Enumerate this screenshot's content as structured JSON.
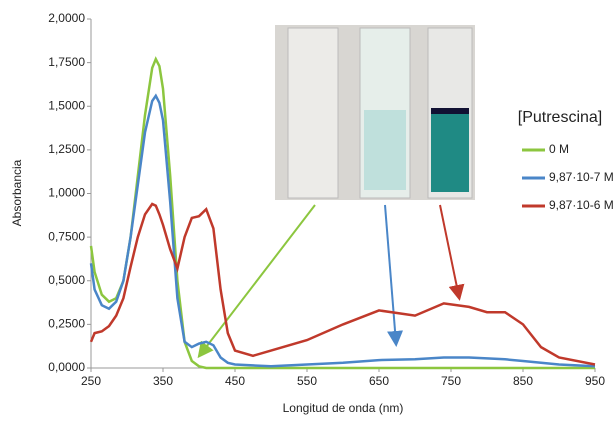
{
  "chart_data": {
    "type": "line",
    "x_label": "Longitud de onda (nm)",
    "y_label": "Absorbancia",
    "legend_title": "[Putrescina]",
    "x": [
      250,
      255,
      265,
      275,
      285,
      295,
      305,
      315,
      325,
      335,
      340,
      345,
      350,
      360,
      370,
      380,
      390,
      400,
      410,
      420,
      430,
      440,
      450,
      475,
      500,
      550,
      600,
      650,
      700,
      740,
      775,
      800,
      825,
      850,
      875,
      900,
      950
    ],
    "series": [
      {
        "name": "0 M",
        "color": "#8cc63f",
        "values": [
          0.7,
          0.55,
          0.42,
          0.38,
          0.4,
          0.5,
          0.75,
          1.1,
          1.45,
          1.72,
          1.77,
          1.73,
          1.6,
          1.1,
          0.5,
          0.15,
          0.04,
          0.01,
          0,
          0,
          0,
          0,
          0,
          0,
          0,
          0,
          0,
          0,
          0,
          0,
          0,
          0,
          0,
          0,
          0,
          0,
          0
        ]
      },
      {
        "name": "9,87·10-7 M",
        "color": "#4a86c8",
        "values": [
          0.6,
          0.45,
          0.36,
          0.34,
          0.38,
          0.5,
          0.75,
          1.05,
          1.35,
          1.53,
          1.56,
          1.52,
          1.42,
          0.95,
          0.4,
          0.15,
          0.12,
          0.14,
          0.15,
          0.13,
          0.06,
          0.03,
          0.02,
          0.015,
          0.01,
          0.02,
          0.03,
          0.045,
          0.05,
          0.06,
          0.06,
          0.055,
          0.05,
          0.04,
          0.03,
          0.02,
          0.01
        ]
      },
      {
        "name": "9,87·10-6 M",
        "color": "#c0392b",
        "values": [
          0.15,
          0.2,
          0.21,
          0.24,
          0.3,
          0.4,
          0.58,
          0.75,
          0.88,
          0.94,
          0.93,
          0.88,
          0.82,
          0.68,
          0.57,
          0.75,
          0.86,
          0.87,
          0.91,
          0.8,
          0.45,
          0.2,
          0.1,
          0.07,
          0.1,
          0.16,
          0.25,
          0.33,
          0.3,
          0.37,
          0.35,
          0.32,
          0.32,
          0.25,
          0.12,
          0.06,
          0.02
        ]
      }
    ],
    "xlim": [
      250,
      950
    ],
    "xticks": [
      250,
      350,
      450,
      550,
      650,
      750,
      850,
      950
    ],
    "ylim": [
      0,
      2
    ],
    "yticks": [
      {
        "value": 0,
        "label": "0,0000"
      },
      {
        "value": 0.25,
        "label": "0,2500"
      },
      {
        "value": 0.5,
        "label": "0,5000"
      },
      {
        "value": 0.75,
        "label": "0,7500"
      },
      {
        "value": 1,
        "label": "1,0000"
      },
      {
        "value": 1.25,
        "label": "1,2500"
      },
      {
        "value": 1.5,
        "label": "1,5000"
      },
      {
        "value": 1.75,
        "label": "1,7500"
      },
      {
        "value": 2,
        "label": "2,0000"
      }
    ],
    "legend": "right"
  }
}
